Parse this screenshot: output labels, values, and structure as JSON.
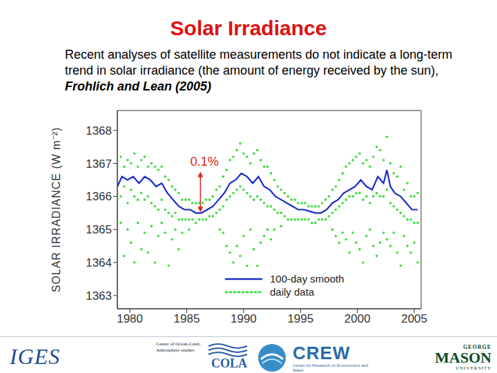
{
  "title": "Solar Irradiance",
  "text": "Recent analyses of satellite measurements do not indicate a long-term trend in solar irradiance (the amount of energy received by the sun), ",
  "citation": "Frohlich and Lean (2005)",
  "chart_data": {
    "type": "scatter_line",
    "y_label": "SOLAR IRRADIANCE (W m⁻²)",
    "xlim": [
      1978.9,
      2005.6
    ],
    "xticks": [
      1980,
      1985,
      1990,
      1995,
      2000,
      2005
    ],
    "ylim": [
      1362.6,
      1368.6
    ],
    "yticks": [
      1363,
      1364,
      1365,
      1366,
      1367,
      1368
    ],
    "grid": false,
    "legend": "lower center",
    "annotations": [
      {
        "text": "0.1%",
        "x": 1986.2,
        "y_from": 1366.75,
        "y_to": 1365.52,
        "color": "#e52020"
      }
    ],
    "series": [
      {
        "name": "100-day smooth",
        "type": "line",
        "color": "#1a2cc8",
        "line_style": "solid",
        "x": [
          1978.9,
          1979.3,
          1979.8,
          1980.3,
          1980.8,
          1981.3,
          1981.8,
          1982.3,
          1982.8,
          1983.3,
          1983.8,
          1984.3,
          1984.8,
          1985.3,
          1985.8,
          1986.3,
          1986.8,
          1987.3,
          1987.8,
          1988.3,
          1988.8,
          1989.3,
          1989.8,
          1990.3,
          1990.8,
          1991.3,
          1991.8,
          1992.3,
          1992.8,
          1993.3,
          1993.8,
          1994.3,
          1994.8,
          1995.3,
          1995.8,
          1996.3,
          1996.8,
          1997.3,
          1997.8,
          1998.3,
          1998.8,
          1999.3,
          1999.8,
          2000.3,
          2000.8,
          2001.3,
          2001.8,
          2002.3,
          2002.6,
          2002.9,
          2003.3,
          2003.8,
          2004.3,
          2004.8,
          2005.3
        ],
        "values": [
          1366.3,
          1366.6,
          1366.5,
          1366.6,
          1366.4,
          1366.6,
          1366.5,
          1366.3,
          1366.4,
          1366.1,
          1365.9,
          1365.7,
          1365.6,
          1365.6,
          1365.5,
          1365.5,
          1365.6,
          1365.7,
          1365.9,
          1366.1,
          1366.4,
          1366.5,
          1366.7,
          1366.6,
          1366.4,
          1366.6,
          1366.3,
          1366.2,
          1366.0,
          1365.9,
          1365.8,
          1365.7,
          1365.6,
          1365.6,
          1365.55,
          1365.5,
          1365.5,
          1365.6,
          1365.8,
          1365.9,
          1366.1,
          1366.2,
          1366.3,
          1366.5,
          1366.3,
          1366.2,
          1366.6,
          1366.4,
          1366.8,
          1366.3,
          1366.1,
          1366.0,
          1365.8,
          1365.6,
          1365.6
        ]
      },
      {
        "name": "daily data",
        "type": "scatter",
        "color": "#3ddc3d",
        "marker": "dot",
        "line_style": "dotted",
        "x": [
          1978.9,
          1978.9,
          1978.9,
          1979.2,
          1979.2,
          1979.2,
          1979.5,
          1979.5,
          1979.5,
          1979.8,
          1979.8,
          1979.8,
          1980.1,
          1980.1,
          1980.1,
          1980.4,
          1980.4,
          1980.4,
          1980.7,
          1980.7,
          1980.7,
          1981.0,
          1981.0,
          1981.0,
          1981.3,
          1981.3,
          1981.3,
          1981.6,
          1981.6,
          1981.6,
          1981.9,
          1981.9,
          1981.9,
          1982.2,
          1982.2,
          1982.2,
          1982.5,
          1982.5,
          1982.5,
          1982.8,
          1982.8,
          1982.8,
          1983.1,
          1983.1,
          1983.1,
          1983.4,
          1983.4,
          1983.4,
          1983.7,
          1983.7,
          1983.7,
          1984.0,
          1984.0,
          1984.0,
          1984.3,
          1984.3,
          1984.3,
          1984.6,
          1984.6,
          1984.6,
          1984.9,
          1984.9,
          1985.2,
          1985.2,
          1985.2,
          1985.5,
          1985.5,
          1985.8,
          1985.8,
          1986.1,
          1986.1,
          1986.4,
          1986.4,
          1986.7,
          1986.7,
          1987.0,
          1987.0,
          1987.3,
          1987.3,
          1987.6,
          1987.6,
          1987.9,
          1987.9,
          1987.9,
          1988.2,
          1988.2,
          1988.2,
          1988.5,
          1988.5,
          1988.5,
          1988.8,
          1988.8,
          1988.8,
          1989.1,
          1989.1,
          1989.1,
          1989.4,
          1989.4,
          1989.4,
          1989.7,
          1989.7,
          1989.7,
          1990.0,
          1990.0,
          1990.0,
          1990.3,
          1990.3,
          1990.3,
          1990.6,
          1990.6,
          1990.6,
          1990.9,
          1990.9,
          1990.9,
          1991.2,
          1991.2,
          1991.2,
          1991.5,
          1991.5,
          1991.5,
          1991.8,
          1991.8,
          1991.8,
          1992.1,
          1992.1,
          1992.1,
          1992.4,
          1992.4,
          1992.4,
          1992.7,
          1992.7,
          1992.7,
          1993.0,
          1993.0,
          1993.3,
          1993.3,
          1993.3,
          1993.6,
          1993.6,
          1993.9,
          1993.9,
          1994.2,
          1994.2,
          1994.5,
          1994.5,
          1994.8,
          1994.8,
          1995.1,
          1995.1,
          1995.4,
          1995.4,
          1995.7,
          1995.7,
          1996.0,
          1996.0,
          1996.3,
          1996.3,
          1996.6,
          1996.6,
          1996.9,
          1996.9,
          1997.2,
          1997.2,
          1997.5,
          1997.5,
          1997.8,
          1997.8,
          1997.8,
          1998.1,
          1998.1,
          1998.1,
          1998.4,
          1998.4,
          1998.4,
          1998.7,
          1998.7,
          1998.7,
          1999.0,
          1999.0,
          1999.0,
          1999.3,
          1999.3,
          1999.3,
          1999.6,
          1999.6,
          1999.6,
          1999.9,
          1999.9,
          1999.9,
          2000.2,
          2000.2,
          2000.2,
          2000.5,
          2000.5,
          2000.5,
          2000.8,
          2000.8,
          2000.8,
          2001.1,
          2001.1,
          2001.1,
          2001.4,
          2001.4,
          2001.4,
          2001.7,
          2001.7,
          2001.7,
          2002.0,
          2002.0,
          2002.0,
          2002.3,
          2002.3,
          2002.3,
          2002.6,
          2002.6,
          2002.6,
          2002.9,
          2002.9,
          2002.9,
          2003.2,
          2003.2,
          2003.2,
          2003.5,
          2003.5,
          2003.5,
          2003.8,
          2003.8,
          2003.8,
          2004.1,
          2004.1,
          2004.1,
          2004.4,
          2004.4,
          2004.4,
          2004.7,
          2004.7,
          2004.7,
          2005.0,
          2005.0,
          2005.0,
          2005.3,
          2005.3,
          2005.3
        ],
        "values": [
          1366.9,
          1365.9,
          1364.6,
          1367.2,
          1366.0,
          1365.2,
          1366.9,
          1366.3,
          1364.2,
          1367.1,
          1365.8,
          1365.0,
          1367.0,
          1366.2,
          1364.6,
          1367.3,
          1366.0,
          1364.0,
          1366.9,
          1365.9,
          1365.2,
          1367.1,
          1366.1,
          1364.4,
          1367.2,
          1365.9,
          1364.9,
          1366.9,
          1366.0,
          1364.3,
          1367.0,
          1365.8,
          1365.1,
          1366.9,
          1365.7,
          1364.0,
          1366.8,
          1365.6,
          1364.8,
          1366.9,
          1365.9,
          1365.2,
          1366.6,
          1365.6,
          1364.9,
          1366.5,
          1365.5,
          1363.9,
          1366.3,
          1365.4,
          1364.7,
          1366.2,
          1365.5,
          1365.0,
          1366.1,
          1365.3,
          1364.4,
          1365.9,
          1365.3,
          1364.9,
          1365.9,
          1365.3,
          1365.9,
          1365.3,
          1365.0,
          1365.8,
          1365.3,
          1365.8,
          1365.2,
          1365.8,
          1365.3,
          1365.8,
          1365.3,
          1365.9,
          1365.3,
          1365.9,
          1365.4,
          1366.0,
          1365.4,
          1366.2,
          1365.5,
          1366.3,
          1365.6,
          1365.0,
          1366.6,
          1365.7,
          1364.9,
          1366.8,
          1365.9,
          1364.5,
          1367.1,
          1366.0,
          1364.3,
          1367.2,
          1366.1,
          1364.0,
          1367.4,
          1366.2,
          1364.5,
          1367.6,
          1366.3,
          1364.2,
          1367.3,
          1366.2,
          1364.8,
          1367.2,
          1366.1,
          1363.9,
          1367.0,
          1366.0,
          1365.0,
          1367.3,
          1365.9,
          1364.4,
          1367.4,
          1366.0,
          1363.9,
          1367.1,
          1365.9,
          1364.6,
          1366.9,
          1365.8,
          1364.8,
          1366.9,
          1365.7,
          1365.0,
          1366.7,
          1365.7,
          1364.7,
          1366.5,
          1365.6,
          1365.0,
          1366.3,
          1365.5,
          1366.2,
          1365.5,
          1365.1,
          1366.1,
          1365.4,
          1366.0,
          1365.3,
          1365.9,
          1365.3,
          1365.9,
          1365.3,
          1365.8,
          1365.3,
          1365.8,
          1365.3,
          1365.8,
          1365.3,
          1365.7,
          1365.3,
          1365.7,
          1365.2,
          1365.7,
          1365.2,
          1365.7,
          1365.3,
          1365.8,
          1365.3,
          1365.9,
          1365.3,
          1366.0,
          1365.4,
          1366.2,
          1365.5,
          1365.0,
          1366.3,
          1365.6,
          1364.8,
          1366.5,
          1365.7,
          1364.6,
          1366.7,
          1365.8,
          1364.9,
          1366.9,
          1365.9,
          1364.7,
          1367.0,
          1366.0,
          1364.3,
          1367.1,
          1366.0,
          1364.9,
          1367.2,
          1366.1,
          1364.6,
          1367.3,
          1366.1,
          1364.4,
          1367.0,
          1365.9,
          1364.0,
          1367.1,
          1366.0,
          1364.8,
          1366.9,
          1365.8,
          1365.0,
          1367.2,
          1366.0,
          1364.5,
          1367.5,
          1366.1,
          1364.2,
          1367.4,
          1366.0,
          1364.6,
          1367.1,
          1366.0,
          1364.9,
          1367.8,
          1366.2,
          1364.7,
          1367.0,
          1365.8,
          1364.5,
          1366.7,
          1365.7,
          1364.9,
          1366.6,
          1365.6,
          1364.3,
          1366.9,
          1365.5,
          1363.9,
          1366.2,
          1365.4,
          1364.8,
          1366.4,
          1365.3,
          1364.5,
          1366.0,
          1365.3,
          1364.3,
          1366.0,
          1365.2,
          1364.6,
          1366.1,
          1365.2,
          1364.0
        ]
      }
    ]
  },
  "footer": {
    "logos": [
      "IGES",
      "Center of Ocean-Land-Atmosphere studies",
      "COLA",
      "CREW",
      "Center for Research on Environment and Water",
      "GEORGE",
      "MASON",
      "UNIVERSITY"
    ]
  }
}
